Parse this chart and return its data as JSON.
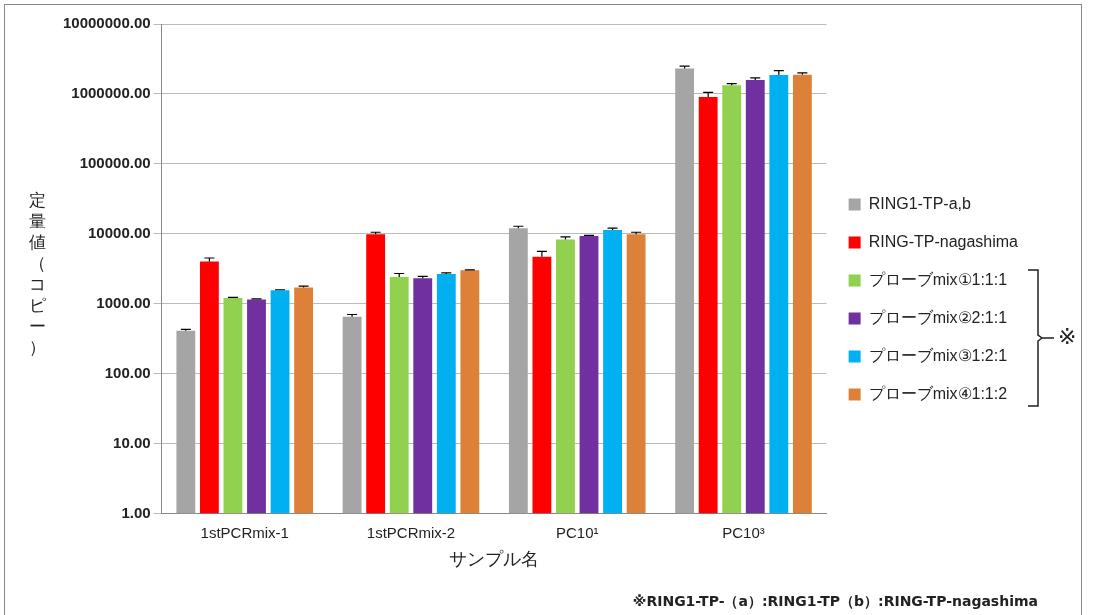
{
  "chart_data": {
    "type": "bar",
    "xlabel": "サンプル名",
    "ylabel": "定量値（コピー）",
    "log": "y",
    "grid": "y",
    "legend": "right",
    "categories": [
      "1stPCRmix-1",
      "1stPCRmix-2",
      "PC10¹",
      "PC10³"
    ],
    "ylim": [
      1,
      10000000
    ],
    "yticks": [
      {
        "value": 1,
        "label": "1.00"
      },
      {
        "value": 10,
        "label": "10.00"
      },
      {
        "value": 100,
        "label": "100.00"
      },
      {
        "value": 1000,
        "label": "1000.00"
      },
      {
        "value": 10000,
        "label": "10000.00"
      },
      {
        "value": 100000,
        "label": "100000.00"
      },
      {
        "value": 1000000,
        "label": "1000000.00"
      },
      {
        "value": 10000000,
        "label": "10000000.00"
      }
    ],
    "series": [
      {
        "name": "RING1-TP-a,b",
        "color": "#a5a5a5",
        "values": [
          410,
          650,
          12000,
          2300000
        ],
        "errors": [
          [
            410,
            430
          ],
          [
            650,
            700
          ],
          [
            12000,
            12800
          ],
          [
            2300000,
            2500000
          ]
        ]
      },
      {
        "name": "RING-TP-nagashima",
        "color": "#ff0000",
        "values": [
          4000,
          9800,
          4700,
          900000
        ],
        "errors": [
          [
            4000,
            4500
          ],
          [
            9800,
            10500
          ],
          [
            4700,
            5600
          ],
          [
            900000,
            1050000
          ]
        ]
      },
      {
        "name": "プローブmix①1:1:1",
        "color": "#92d050",
        "values": [
          1200,
          2400,
          8300,
          1330000
        ],
        "errors": [
          [
            1200,
            1230
          ],
          [
            2400,
            2700
          ],
          [
            8300,
            9000
          ],
          [
            1330000,
            1400000
          ]
        ]
      },
      {
        "name": "プローブmix②2:1:1",
        "color": "#7030a0",
        "values": [
          1150,
          2300,
          9300,
          1580000
        ],
        "errors": [
          [
            1150,
            1170
          ],
          [
            2300,
            2450
          ],
          [
            9300,
            9500
          ],
          [
            1580000,
            1700000
          ]
        ]
      },
      {
        "name": "プローブmix③1:2:1",
        "color": "#00b0f0",
        "values": [
          1550,
          2650,
          11300,
          1870000
        ],
        "errors": [
          [
            1550,
            1580
          ],
          [
            2650,
            2750
          ],
          [
            11300,
            12000
          ],
          [
            1870000,
            2150000
          ]
        ]
      },
      {
        "name": "プローブmix④1:1:2",
        "color": "#dd8139",
        "values": [
          1700,
          3000,
          9800,
          1880000
        ],
        "errors": [
          [
            1700,
            1780
          ],
          [
            3000,
            3050
          ],
          [
            9800,
            10500
          ],
          [
            1880000,
            2000000
          ]
        ]
      }
    ],
    "annotations": [
      "※",
      "※RING1-TP-（a）:RING1-TP（b）:RING-TP-nagashima"
    ]
  }
}
